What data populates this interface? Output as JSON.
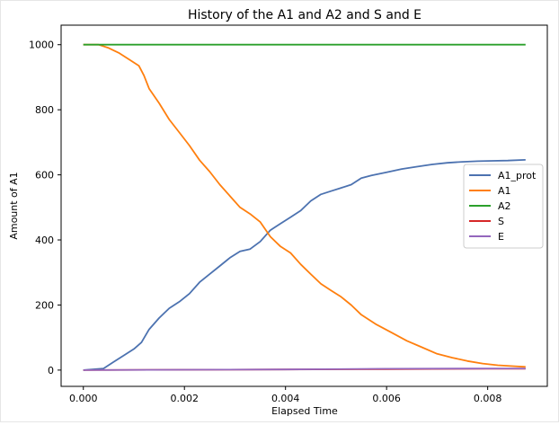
{
  "chart_data": {
    "type": "line",
    "title": "History of the A1 and A2 and S and E",
    "xlabel": "Elapsed Time",
    "ylabel": "Amount of A1",
    "xlim": [
      -0.00044,
      0.00918
    ],
    "ylim": [
      -50,
      1060
    ],
    "xticks": [
      0.0,
      0.002,
      0.004,
      0.006,
      0.008
    ],
    "xtick_labels": [
      "0.000",
      "0.002",
      "0.004",
      "0.006",
      "0.008"
    ],
    "yticks": [
      0,
      200,
      400,
      600,
      800,
      1000
    ],
    "ytick_labels": [
      "0",
      "200",
      "400",
      "600",
      "800",
      "1000"
    ],
    "grid": false,
    "legend_position": "center-right",
    "series": [
      {
        "name": "A1_prot",
        "color": "#4c72b0",
        "x": [
          0.0,
          0.0004,
          0.0006,
          0.0008,
          0.001,
          0.00115,
          0.0013,
          0.0015,
          0.0017,
          0.0019,
          0.0021,
          0.0023,
          0.0025,
          0.0027,
          0.0029,
          0.0031,
          0.0033,
          0.0035,
          0.0037,
          0.0039,
          0.0041,
          0.0043,
          0.0045,
          0.0047,
          0.0049,
          0.0051,
          0.0053,
          0.0055,
          0.0057,
          0.006,
          0.0063,
          0.0066,
          0.0069,
          0.0072,
          0.0075,
          0.0078,
          0.0081,
          0.0084,
          0.00875
        ],
        "y": [
          0,
          5,
          25,
          45,
          65,
          85,
          125,
          160,
          190,
          210,
          235,
          270,
          295,
          320,
          345,
          365,
          372,
          395,
          430,
          450,
          470,
          490,
          520,
          540,
          550,
          560,
          570,
          590,
          598,
          608,
          618,
          625,
          632,
          637,
          640,
          642,
          643,
          644,
          646
        ]
      },
      {
        "name": "A1",
        "color": "#ff7f0e",
        "x": [
          0.0,
          0.0003,
          0.0005,
          0.0007,
          0.0009,
          0.0011,
          0.0012,
          0.0013,
          0.0015,
          0.0017,
          0.0019,
          0.0021,
          0.0023,
          0.0025,
          0.0027,
          0.0029,
          0.0031,
          0.0033,
          0.0035,
          0.0037,
          0.0039,
          0.0041,
          0.0043,
          0.0045,
          0.0047,
          0.0049,
          0.0051,
          0.0053,
          0.0055,
          0.0058,
          0.0061,
          0.0064,
          0.0067,
          0.007,
          0.0073,
          0.0076,
          0.0079,
          0.0082,
          0.0085,
          0.00875
        ],
        "y": [
          1000,
          1000,
          990,
          975,
          955,
          935,
          905,
          865,
          820,
          770,
          730,
          690,
          645,
          610,
          570,
          535,
          500,
          480,
          455,
          410,
          380,
          360,
          325,
          295,
          265,
          245,
          225,
          200,
          170,
          140,
          115,
          90,
          70,
          50,
          38,
          28,
          20,
          15,
          12,
          10
        ]
      },
      {
        "name": "A2",
        "color": "#2ca02c",
        "x": [
          0.0,
          0.00875
        ],
        "y": [
          1000,
          1000
        ]
      },
      {
        "name": "S",
        "color": "#d62728",
        "x": [
          0.0,
          0.002,
          0.004,
          0.006,
          0.008,
          0.00875
        ],
        "y": [
          0,
          1,
          2,
          3,
          4,
          4
        ]
      },
      {
        "name": "E",
        "color": "#9467bd",
        "x": [
          0.0,
          0.002,
          0.004,
          0.006,
          0.008,
          0.00875
        ],
        "y": [
          0,
          1,
          2,
          4,
          5,
          5
        ]
      }
    ]
  }
}
